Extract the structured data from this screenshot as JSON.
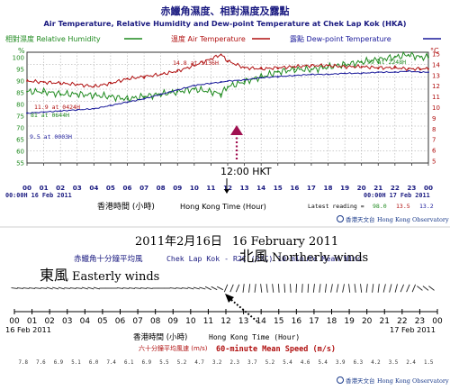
{
  "colors": {
    "title": "#1a1a80",
    "humidity": "#1f8a1f",
    "air": "#b01010",
    "dew": "#1a1a9a",
    "arrow_marker": "#a01050",
    "plot_bg": "#ffffff",
    "grid": "#9a9a9a",
    "logo": "#1a3a8a"
  },
  "top_chart": {
    "title_cn": "赤鱲角濕度、相對濕度及露點",
    "title_en": "Air Temperature, Relative Humidity and Dew-point Temperature at Chek Lap Kok (HKA)",
    "legend": {
      "humidity": "相對濕度 Relative Humidity",
      "air": "溫度 Air Temperature",
      "dew": "露點 Dew-point Temperature"
    },
    "left_unit": "%",
    "right_unit": "°C",
    "y_left_ticks": [
      "100",
      "95",
      "90",
      "85",
      "80",
      "75",
      "70",
      "65",
      "60",
      "55"
    ],
    "y_right_ticks": [
      "15",
      "14",
      "13",
      "12",
      "11",
      "10",
      "9",
      "8",
      "7",
      "6",
      "5"
    ],
    "x_ticks": [
      "00",
      "01",
      "02",
      "03",
      "04",
      "05",
      "06",
      "07",
      "08",
      "09",
      "10",
      "11",
      "12",
      "13",
      "14",
      "15",
      "16",
      "17",
      "18",
      "19",
      "20",
      "21",
      "22",
      "23",
      "00"
    ],
    "start_label": "00:00H 16 Feb 2011",
    "end_label": "00:00H 17 Feb 2011",
    "xlabel_cn": "香港時間 (小時)",
    "xlabel_en": "Hong Kong Time (Hour)",
    "annotations": {
      "max_temp": "14.8 at 1136H",
      "max_rh": "99 at 2248H",
      "min_temp": "11.9 at 0424H",
      "min_dew": "9.5 at 0003H",
      "min_rh": "81 at 0644H",
      "noon": "12:00 HKT"
    },
    "latest_label": "Latest reading =",
    "latest_values": [
      "98.0",
      "13.5",
      "13.2"
    ]
  },
  "date_line": {
    "cn": "2011年2月16日",
    "en": "16 February 2011"
  },
  "bottom_chart": {
    "title_cn": "赤鱲角十分鐘平均風",
    "title_en": "Chek Lap Kok - R2C (R2C) 10-minute Mean Wind",
    "easterly_cn": "東風",
    "easterly_en": "Easterly winds",
    "northerly_cn": "北風",
    "northerly_en": "Northerly winds",
    "x_ticks": [
      "00",
      "01",
      "02",
      "03",
      "04",
      "05",
      "06",
      "07",
      "08",
      "09",
      "10",
      "11",
      "12",
      "13",
      "14",
      "15",
      "16",
      "17",
      "18",
      "19",
      "20",
      "21",
      "22",
      "23",
      "00"
    ],
    "start_date": "16 Feb 2011",
    "end_date": "17 Feb 2011",
    "xlabel_cn": "香港時間 (小時)",
    "xlabel_en": "Hong Kong Time (Hour)",
    "speed_label_cn": "六十分鐘平均風速 (m/s)",
    "speed_label_en": "60-minute Mean Speed (m/s)",
    "speeds": [
      "7.8",
      "7.6",
      "6.9",
      "5.1",
      "6.0",
      "7.4",
      "6.1",
      "6.9",
      "5.5",
      "5.2",
      "4.7",
      "3.2",
      "2.3",
      "3.7",
      "5.2",
      "5.4",
      "4.6",
      "5.4",
      "3.9",
      "6.3",
      "4.2",
      "3.5",
      "2.4",
      "1.5"
    ],
    "wind_direction_deg": [
      95,
      95,
      100,
      95,
      100,
      90,
      95,
      95,
      90,
      95,
      100,
      110,
      30,
      10,
      350,
      355,
      5,
      10,
      15,
      350,
      10,
      20,
      30,
      120
    ]
  },
  "logo": {
    "cn": "香港天文台",
    "en": "Hong Kong Observatory"
  },
  "chart_data": [
    {
      "type": "line",
      "title": "Air Temperature, Relative Humidity and Dew-point Temperature at Chek Lap Kok (HKA)",
      "x": [
        0,
        1,
        2,
        3,
        4,
        5,
        6,
        7,
        8,
        9,
        10,
        11,
        11.6,
        12,
        13,
        14,
        15,
        16,
        17,
        18,
        19,
        20,
        21,
        22,
        22.8,
        23.5,
        24
      ],
      "xlabel": "Hong Kong Time (Hour)",
      "series": [
        {
          "name": "相對濕度 Relative Humidity",
          "axis": "left",
          "values": [
            84,
            84,
            83,
            83,
            82.5,
            82,
            81,
            82,
            83,
            84,
            85,
            84,
            83,
            86,
            88,
            90,
            92,
            93,
            93,
            94,
            95,
            96,
            97,
            98,
            99,
            98,
            98
          ]
        },
        {
          "name": "溫度 Air Temperature",
          "axis": "right",
          "values": [
            12.4,
            12.3,
            12.2,
            12.1,
            11.9,
            12.2,
            12.6,
            12.8,
            13.0,
            13.3,
            13.8,
            14.4,
            14.8,
            14.2,
            13.6,
            13.5,
            13.6,
            13.7,
            13.8,
            13.8,
            13.7,
            13.7,
            13.6,
            13.6,
            13.5,
            13.5,
            13.5
          ]
        },
        {
          "name": "露點 Dew-point Temperature",
          "axis": "right",
          "values": [
            9.5,
            9.6,
            9.7,
            9.8,
            9.9,
            10.2,
            10.5,
            10.8,
            11.2,
            11.6,
            12.0,
            12.2,
            12.3,
            12.4,
            12.5,
            12.7,
            12.8,
            12.9,
            13.0,
            13.0,
            13.1,
            13.1,
            13.2,
            13.2,
            13.3,
            13.2,
            13.2
          ]
        }
      ],
      "y_left_range": [
        55,
        100
      ],
      "y_right_range": [
        5,
        15
      ],
      "grid": true
    },
    {
      "type": "table",
      "title": "Chek Lap Kok - R2C (R2C) 10-minute Mean Wind",
      "x": [
        "00",
        "01",
        "02",
        "03",
        "04",
        "05",
        "06",
        "07",
        "08",
        "09",
        "10",
        "11",
        "12",
        "13",
        "14",
        "15",
        "16",
        "17",
        "18",
        "19",
        "20",
        "21",
        "22",
        "23"
      ],
      "speed_ms": [
        7.8,
        7.6,
        6.9,
        5.1,
        6.0,
        7.4,
        6.1,
        6.9,
        5.5,
        5.2,
        4.7,
        3.2,
        2.3,
        3.7,
        5.2,
        5.4,
        4.6,
        5.4,
        3.9,
        6.3,
        4.2,
        3.5,
        2.4,
        1.5
      ],
      "xlabel": "Hong Kong Time (Hour)"
    }
  ]
}
